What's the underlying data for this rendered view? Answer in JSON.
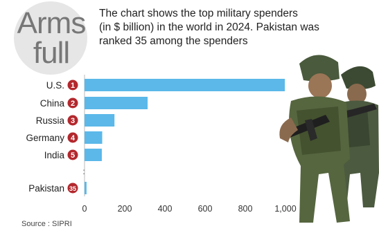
{
  "header": {
    "title_lines": [
      "Arms",
      "full"
    ],
    "subtitle_lines": [
      "The chart shows the top military spenders",
      "(in $ billion) in the world in 2024. Pakistan was",
      "ranked 35 among the spenders"
    ]
  },
  "source": "Source : SIPRI",
  "photo": {
    "icon": "soldiers-photo"
  },
  "colors": {
    "bar": "#5bb8e9",
    "rank_badge": "#b3282d",
    "title_circle": "#e6e6e6"
  },
  "chart_data": {
    "type": "bar",
    "orientation": "horizontal",
    "categories": [
      "U.S.",
      "China",
      "Russia",
      "Germany",
      "India",
      "Pakistan"
    ],
    "ranks": [
      "1",
      "2",
      "3",
      "4",
      "5",
      "35"
    ],
    "values": [
      997,
      314,
      149,
      88,
      86,
      10
    ],
    "gap_marker": ":",
    "gap_after_index": 4,
    "xlim": [
      0,
      1000
    ],
    "xticks": [
      "0",
      "200",
      "400",
      "600",
      "800",
      "1,000"
    ],
    "grid": false,
    "title": "",
    "xlabel": "",
    "ylabel": ""
  }
}
